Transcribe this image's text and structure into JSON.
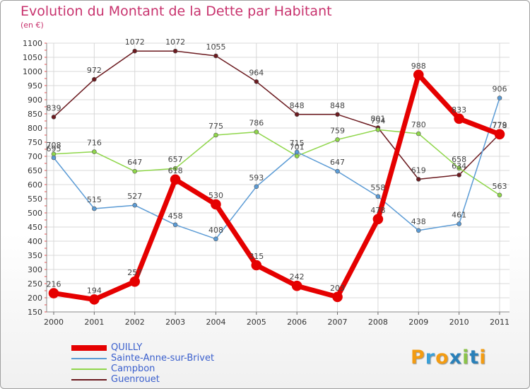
{
  "header": {
    "title": "Evolution du Montant de la Dette par Habitant",
    "subtitle": "(en €)"
  },
  "logo": {
    "letters": [
      "P",
      "r",
      "o",
      "x",
      "i",
      "t",
      "i"
    ]
  },
  "chart_data": {
    "type": "line",
    "title": "Evolution du Montant de la Dette par Habitant",
    "ylabel": "(en €)",
    "xlabel": "",
    "ylim": [
      150,
      1100
    ],
    "yticks": [
      150,
      200,
      250,
      300,
      350,
      400,
      450,
      500,
      550,
      600,
      650,
      700,
      750,
      800,
      850,
      900,
      950,
      1000,
      1050,
      1100
    ],
    "categories": [
      "2000",
      "2001",
      "2002",
      "2003",
      "2004",
      "2005",
      "2006",
      "2007",
      "2008",
      "2009",
      "2010",
      "2011"
    ],
    "grid": true,
    "legend": "bottom-left",
    "series": [
      {
        "name": "Guenrouet",
        "color": "#6b1a1f",
        "stroke": 1.5,
        "marker": 3,
        "values": [
          839,
          972,
          1072,
          1072,
          1055,
          964,
          848,
          848,
          801,
          619,
          634,
          779
        ]
      },
      {
        "name": "Campbon",
        "color": "#8fd64a",
        "stroke": 1.5,
        "marker": 3,
        "values": [
          708,
          716,
          647,
          657,
          775,
          786,
          701,
          759,
          794,
          780,
          658,
          563
        ]
      },
      {
        "name": "Sainte-Anne-sur-Brivet",
        "color": "#5b9bd5",
        "stroke": 1.5,
        "marker": 3,
        "values": [
          695,
          515,
          527,
          458,
          408,
          593,
          715,
          647,
          558,
          438,
          461,
          906
        ]
      },
      {
        "name": "QUILLY",
        "color": "#e50000",
        "stroke": 7,
        "marker": 7,
        "values": [
          216,
          194,
          257,
          618,
          530,
          315,
          242,
          203,
          478,
          988,
          833,
          778
        ]
      }
    ],
    "legend_order": [
      "QUILLY",
      "Sainte-Anne-sur-Brivet",
      "Campbon",
      "Guenrouet"
    ]
  }
}
